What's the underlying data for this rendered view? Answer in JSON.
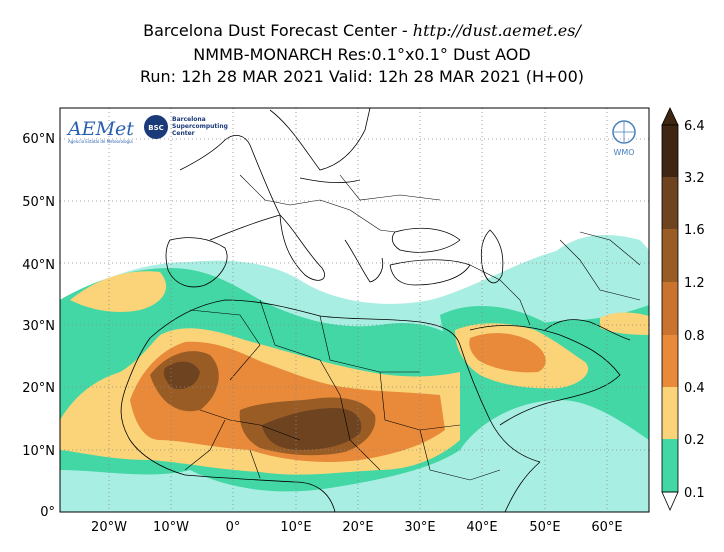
{
  "title": {
    "line1_prefix": "Barcelona Dust Forecast Center - ",
    "line1_url": "http://dust.aemet.es/",
    "line2": "NMMB-MONARCH   Res:0.1°x0.1°   Dust AOD",
    "line3": "Run: 12h 28 MAR 2021   Valid: 12h 28 MAR 2021 (H+00)"
  },
  "axes": {
    "lat_labels": [
      "60°N",
      "50°N",
      "40°N",
      "30°N",
      "20°N",
      "10°N",
      "0°"
    ],
    "lon_labels": [
      "20°W",
      "10°W",
      "0°",
      "10°E",
      "20°E",
      "30°E",
      "40°E",
      "50°E",
      "60°E"
    ]
  },
  "colorbar": {
    "tick_labels": [
      "6.4",
      "3.2",
      "1.6",
      "1.2",
      "0.8",
      "0.4",
      "0.2",
      "0.1"
    ],
    "colors": [
      "#3f2612",
      "#6e4320",
      "#9a5c25",
      "#c9732f",
      "#e88a3a",
      "#fbd47a",
      "#42d7a4",
      "#a8eee2"
    ]
  },
  "logos": {
    "aemet_text": "AEMet",
    "aemet_sub": "Agencia Estatal de Meteorología",
    "bsc_text": "BSC",
    "bsc_name_1": "Barcelona",
    "bsc_name_2": "Supercomputing",
    "bsc_name_3": "Center",
    "wmo_text": "WMO"
  },
  "palette": {
    "ocean_bg": "#ffffff",
    "land_bg": "#ffffff",
    "border": "#000000",
    "grid": "#888888"
  }
}
